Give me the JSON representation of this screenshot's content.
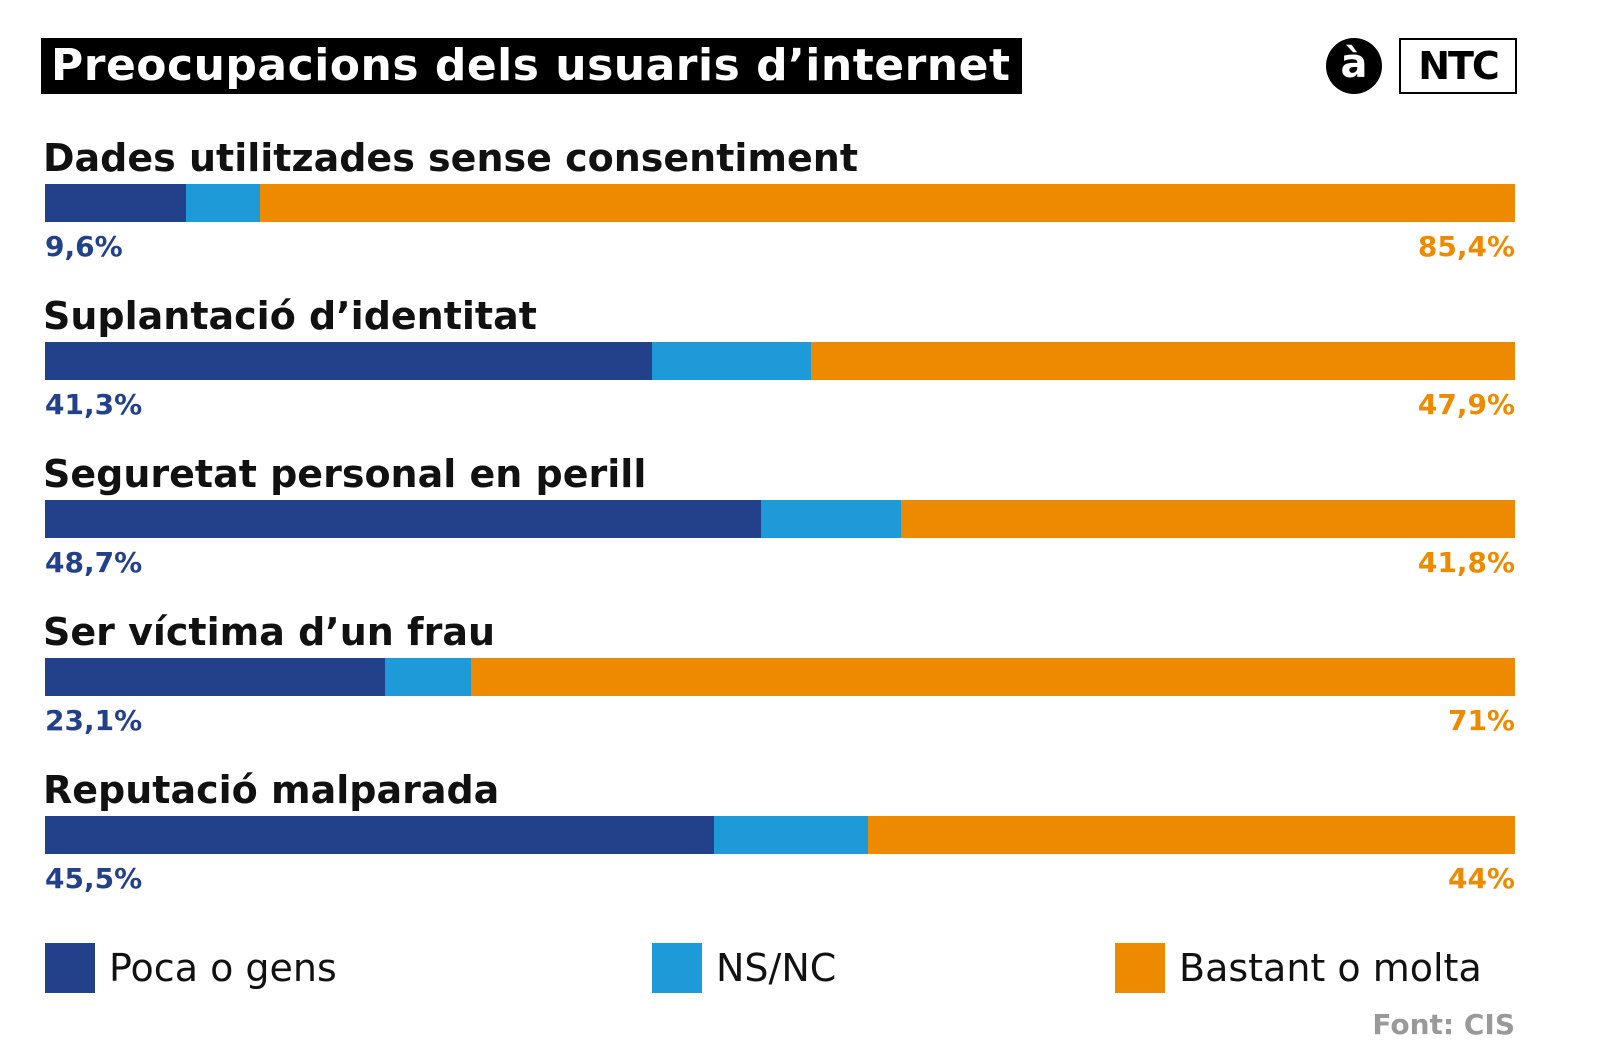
{
  "title": "Preocupacions dels usuaris d’internet",
  "logos": {
    "a": "à",
    "ntc": "NTC"
  },
  "source": "Font: CIS",
  "colors": {
    "low": "#22418a",
    "nsnc": "#1e9ad9",
    "high": "#ee8a00"
  },
  "chart_data": {
    "type": "bar",
    "orientation": "horizontal-stacked-100",
    "title": "Preocupacions dels usuaris d’internet",
    "categories": [
      "Dades utilitzades sense consentiment",
      "Suplantació d’identitat",
      "Seguretat personal en perill",
      "Ser víctima d’un frau",
      "Reputació malparada"
    ],
    "series": [
      {
        "name": "Poca o gens",
        "values": [
          9.6,
          41.3,
          48.7,
          23.1,
          45.5
        ],
        "labels": [
          "9,6%",
          "41,3%",
          "48,7%",
          "23,1%",
          "45,5%"
        ]
      },
      {
        "name": "NS/NC",
        "values": [
          5.0,
          10.8,
          9.5,
          5.9,
          10.5
        ]
      },
      {
        "name": "Bastant o molta",
        "values": [
          85.4,
          47.9,
          41.8,
          71,
          44
        ],
        "labels": [
          "85,4%",
          "47,9%",
          "41,8%",
          "71%",
          "44%"
        ]
      }
    ],
    "xlim": [
      0,
      100
    ],
    "legend": "bottom"
  }
}
